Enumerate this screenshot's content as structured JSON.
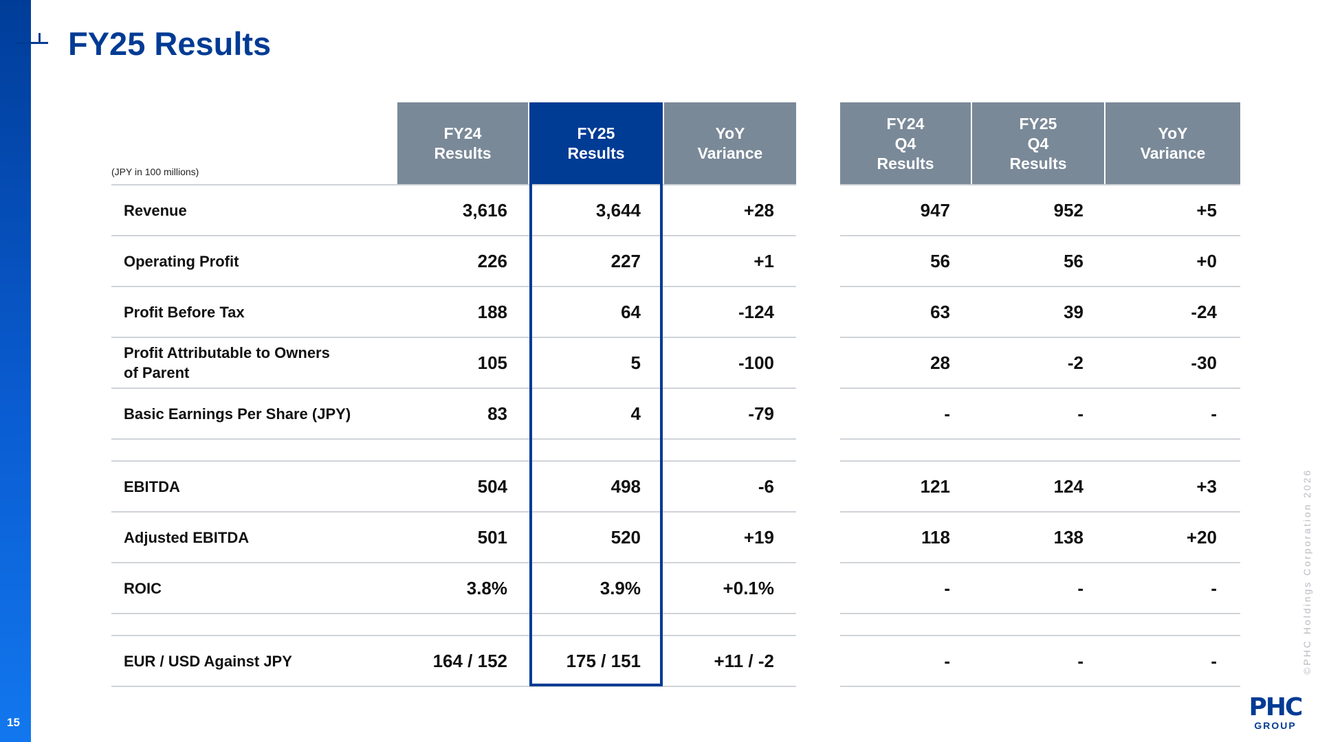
{
  "page": {
    "number": "15",
    "title": "FY25 Results",
    "unit_note": "(JPY in 100 millions)",
    "copyright": "©PHC Holdings Corporation 2026"
  },
  "logo": {
    "main": "PHC",
    "sub": "GROUP"
  },
  "headers": [
    "FY24\nResults",
    "FY25\nResults",
    "YoY\nVariance",
    "FY24\nQ4\nResults",
    "FY25\nQ4\nResults",
    "YoY\nVariance"
  ],
  "rows": [
    {
      "label": "Revenue",
      "values": [
        "3,616",
        "3,644",
        "+28",
        "947",
        "952",
        "+5"
      ]
    },
    {
      "label": "Operating Profit",
      "values": [
        "226",
        "227",
        "+1",
        "56",
        "56",
        "+0"
      ]
    },
    {
      "label": "Profit Before Tax",
      "values": [
        "188",
        "64",
        "-124",
        "63",
        "39",
        "-24"
      ]
    },
    {
      "label": "Profit Attributable to Owners\nof Parent",
      "values": [
        "105",
        "5",
        "-100",
        "28",
        "-2",
        "-30"
      ]
    },
    {
      "label": "Basic Earnings Per Share (JPY)",
      "values": [
        "83",
        "4",
        "-79",
        "-",
        "-",
        "-"
      ]
    },
    {
      "label": "EBITDA",
      "values": [
        "504",
        "498",
        "-6",
        "121",
        "124",
        "+3"
      ]
    },
    {
      "label": "Adjusted EBITDA",
      "values": [
        "501",
        "520",
        "+19",
        "118",
        "138",
        "+20"
      ]
    },
    {
      "label": "ROIC",
      "values": [
        "3.8%",
        "3.9%",
        "+0.1%",
        "-",
        "-",
        "-"
      ]
    },
    {
      "label": "EUR / USD Against JPY",
      "values": [
        "164 / 152",
        "175 / 151",
        "+11 / -2",
        "-",
        "-",
        "-"
      ]
    }
  ],
  "colors": {
    "brand_blue": "#003b94",
    "header_gray": "#7a8998",
    "divider": "#cfd3d8"
  }
}
